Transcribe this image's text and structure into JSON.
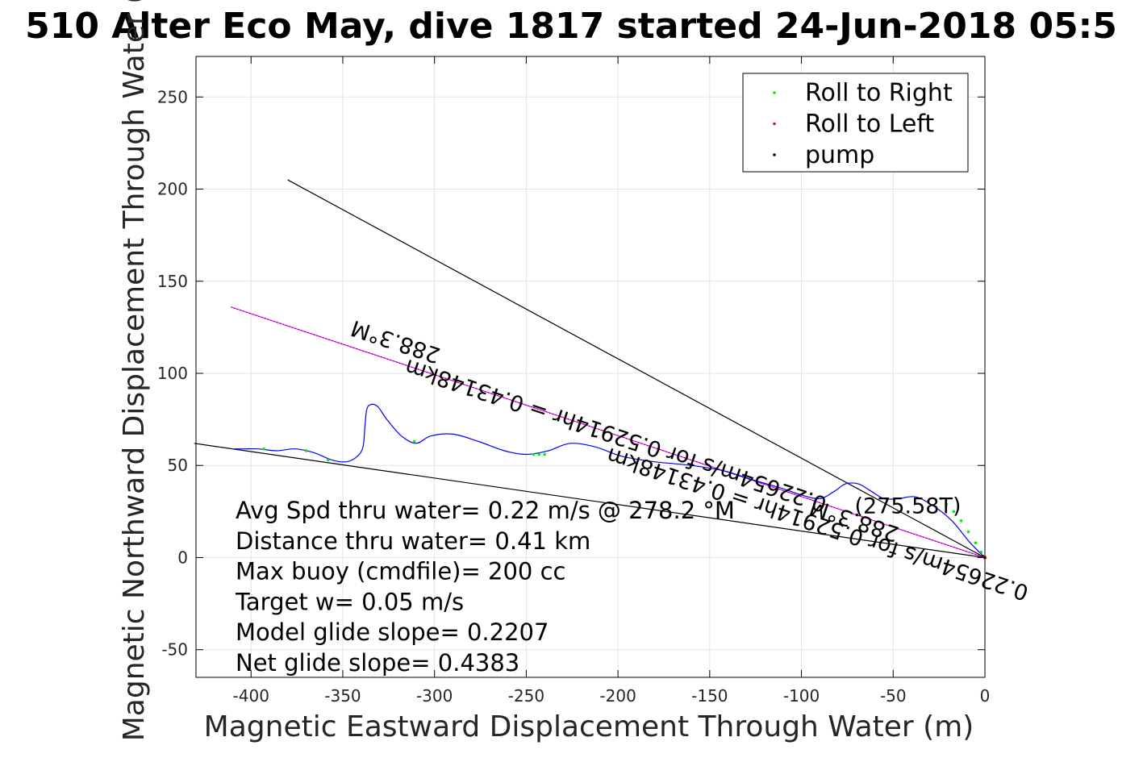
{
  "chart_data": {
    "type": "line",
    "title": "510 Alter Eco May, dive 1817 started 24-Jun-2018 05:5",
    "xlabel": "Magnetic Eastward Displacement Through Water (m)",
    "ylabel": "Magnetic Northward Displacement Through Water (",
    "xlim": [
      -430,
      0
    ],
    "ylim": [
      -65,
      272
    ],
    "xticks": [
      -400,
      -350,
      -300,
      -250,
      -200,
      -150,
      -100,
      -50,
      0
    ],
    "yticks": [
      -50,
      0,
      50,
      100,
      150,
      200,
      250
    ],
    "xtick_labels": [
      "-400",
      "-350",
      "-300",
      "-250",
      "-200",
      "-150",
      "-100",
      "-50",
      "0"
    ],
    "ytick_labels": [
      "-50",
      "0",
      "50",
      "100",
      "150",
      "200",
      "250"
    ],
    "grid": true,
    "legend_position": "top-right",
    "legend": [
      {
        "label": "Roll to Right",
        "color": "#00ee00"
      },
      {
        "label": "Roll to Left",
        "color": "#ff0000"
      },
      {
        "label": "pump",
        "color": "#000000"
      }
    ],
    "track": {
      "color": "#0000ff",
      "x": [
        0,
        -8,
        -18,
        -28,
        -38,
        -47,
        -55,
        -62,
        -69,
        -76,
        -82,
        -90,
        -100,
        -112,
        -126,
        -142,
        -160,
        -180,
        -198,
        -212,
        -226,
        -238,
        -250,
        -262,
        -276,
        -290,
        -302,
        -310,
        -318,
        -326,
        -331,
        -335,
        -337,
        -338,
        -339,
        -342,
        -348,
        -356,
        -366,
        -376,
        -386,
        -396,
        -404,
        -409
      ],
      "y": [
        0,
        8,
        20,
        28,
        33,
        32,
        32,
        36,
        40,
        40,
        36,
        32,
        34,
        38,
        42,
        47,
        50,
        52,
        55,
        60,
        62,
        58,
        56,
        58,
        63,
        67,
        66,
        62,
        66,
        75,
        82,
        83,
        80,
        70,
        60,
        55,
        52,
        53,
        57,
        59,
        58,
        59,
        59,
        59
      ]
    },
    "markers": {
      "roll_right": {
        "color": "#00ee00",
        "x": [
          -2,
          -5,
          -9,
          -13,
          -17,
          -21,
          -24,
          -246,
          -243,
          -240,
          -311,
          -358,
          -370,
          -393
        ],
        "y": [
          3,
          8,
          14,
          20,
          25,
          29,
          32,
          56,
          56,
          56,
          63,
          53,
          58,
          59
        ]
      },
      "roll_left": {
        "color": "#ff0000",
        "x": [
          0
        ],
        "y": [
          0
        ]
      },
      "pump": {
        "color": "#000000",
        "x": [
          0,
          -1
        ],
        "y": [
          0,
          1
        ]
      }
    },
    "lines": [
      {
        "name": "heading line",
        "color": "#000000",
        "x": [
          0,
          -380
        ],
        "y": [
          0,
          205
        ]
      },
      {
        "name": "bearing line",
        "color": "#000000",
        "x": [
          0,
          -431
        ],
        "y": [
          0,
          62
        ]
      },
      {
        "name": "net displacement",
        "color": "#ff00ff",
        "x": [
          0,
          -411
        ],
        "y": [
          0,
          136
        ]
      }
    ],
    "line_labels": [
      {
        "text": "288.3°M",
        "x": -320,
        "y": 121,
        "rotation": 198.3
      },
      {
        "text": "0.22654m/s for 0.52914hr = 0.43148km",
        "x": -200,
        "y": 70,
        "rotation": 198.3
      },
      {
        "text": "288.3°M",
        "x": -70,
        "y": 24,
        "rotation": 198.3
      },
      {
        "text": "0.22654m/s for 0.52914hr = 0.43148km",
        "x": -90,
        "y": 22,
        "rotation": 198.3
      },
      {
        "text": "(275.58T)",
        "x": -42,
        "y": 24,
        "rotation": 0
      }
    ],
    "annotations": [
      "Avg Spd thru water=  0.22 m/s @ 278.2 °M",
      "Distance thru water=  0.41 km",
      "Max buoy (cmdfile)= 200 cc",
      "Target w= 0.05 m/s",
      "Model glide slope= 0.2207",
      "Net glide slope= 0.4383"
    ]
  }
}
